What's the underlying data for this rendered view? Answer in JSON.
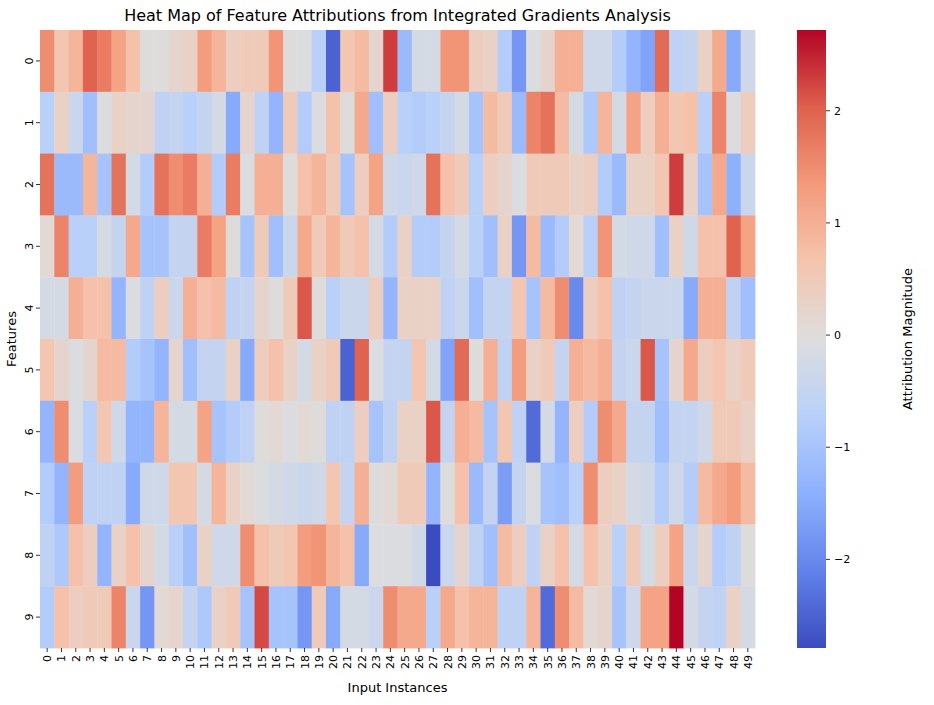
{
  "chart_data": {
    "type": "heatmap",
    "title": "Heat Map of Feature Attributions from Integrated Gradients Analysis",
    "xlabel": "Input Instances",
    "ylabel": "Features",
    "categories": [
      "0",
      "1",
      "2",
      "3",
      "4",
      "5",
      "6",
      "7",
      "8",
      "9",
      "10",
      "11",
      "12",
      "13",
      "14",
      "15",
      "16",
      "17",
      "18",
      "19",
      "20",
      "21",
      "22",
      "23",
      "24",
      "25",
      "26",
      "27",
      "28",
      "29",
      "30",
      "31",
      "32",
      "33",
      "34",
      "35",
      "36",
      "37",
      "38",
      "39",
      "40",
      "41",
      "42",
      "43",
      "44",
      "45",
      "46",
      "47",
      "48",
      "49"
    ],
    "y_categories": [
      "0",
      "1",
      "2",
      "3",
      "4",
      "5",
      "6",
      "7",
      "8",
      "9"
    ],
    "values": [
      [
        1.5,
        0.6,
        0.9,
        2.0,
        1.7,
        1.2,
        0.7,
        0,
        0,
        0.2,
        0.3,
        1.3,
        0.9,
        0.4,
        0.5,
        0.5,
        1.4,
        0,
        -0.1,
        -0.7,
        -2.5,
        0.6,
        0.8,
        0.2,
        2.3,
        -1.2,
        -0.2,
        -0.2,
        1.4,
        1.4,
        0.4,
        0.3,
        -0.8,
        -1.8,
        -0.1,
        0.2,
        1.0,
        1.0,
        -0.3,
        -0.3,
        -0.8,
        -1.3,
        -1.6,
        1.9,
        -0.6,
        -0.5,
        0.3,
        1.1,
        -1.5,
        -0.3
      ],
      [
        -0.7,
        0.3,
        -0.4,
        -1.1,
        -0.1,
        0.3,
        0.2,
        0.2,
        -0.6,
        -0.5,
        -0.7,
        -0.5,
        -0.2,
        -1.5,
        0.2,
        -0.6,
        -1.3,
        0.5,
        -0.8,
        -0.1,
        0.7,
        0,
        1.1,
        -1.1,
        0.4,
        -0.7,
        -0.8,
        -0.7,
        -0.5,
        -0.2,
        -1.0,
        0.8,
        0.5,
        -1.2,
        1.6,
        1.8,
        0.8,
        -0.2,
        -0.9,
        0.9,
        -0.2,
        1.2,
        0.4,
        1.0,
        0.6,
        0.7,
        -0.7,
        1.6,
        -0.1,
        0.4
      ],
      [
        1.8,
        -1.2,
        -1.2,
        0.9,
        -1.0,
        1.8,
        -0.2,
        -0.8,
        1.8,
        1.5,
        1.7,
        1.0,
        -0.8,
        1.7,
        -0.1,
        1.0,
        1.0,
        0,
        0.7,
        0.9,
        0.5,
        -1.0,
        0.4,
        1.2,
        -0.3,
        -0.4,
        -0.3,
        1.8,
        0.7,
        0.5,
        -0.7,
        0.4,
        0.2,
        -0.1,
        0.5,
        0.5,
        0.5,
        0.3,
        0.4,
        -0.8,
        -1.2,
        0.3,
        0.3,
        0.6,
        2.3,
        0.3,
        -1.0,
        1.1,
        -1.4,
        -0.4
      ],
      [
        0.1,
        1.6,
        -0.7,
        -0.7,
        -0.2,
        -0.5,
        1.1,
        -1.0,
        -1.0,
        -0.5,
        -0.5,
        1.7,
        1.2,
        0,
        -1.0,
        0.5,
        -1.1,
        -0.4,
        1.1,
        0.5,
        0.9,
        0.5,
        0.7,
        -0.2,
        -0.8,
        0.3,
        -0.8,
        -0.8,
        -0.5,
        -0.2,
        -0.7,
        -1.1,
        0.3,
        -1.8,
        0.8,
        -1.2,
        -0.8,
        0.1,
        -0.7,
        1.4,
        -0.2,
        -0.3,
        -0.3,
        -1.1,
        0.3,
        -0.3,
        0.7,
        0.7,
        2.0,
        1.2
      ],
      [
        -0.2,
        -0.2,
        1.0,
        0.7,
        0.7,
        -1.3,
        -0.1,
        -0.6,
        0.4,
        -0.4,
        1.0,
        0.7,
        0.8,
        -0.6,
        -0.5,
        0.2,
        0,
        0.5,
        2.1,
        0,
        -0.7,
        -0.4,
        -0.4,
        0.4,
        -1.3,
        0.3,
        0.3,
        0.3,
        -0.6,
        -0.4,
        -1.1,
        -0.5,
        -0.5,
        0.6,
        -1.0,
        0.8,
        1.5,
        -2.0,
        0.4,
        0.7,
        -0.6,
        -0.5,
        -0.4,
        -0.4,
        -0.4,
        -1.5,
        1.0,
        1.0,
        -0.6,
        -1.1
      ],
      [
        0.6,
        0.2,
        -0.1,
        0.2,
        0.8,
        0.8,
        -0.8,
        -1.0,
        -1.3,
        0.2,
        -1.1,
        -0.5,
        -0.5,
        0.3,
        -1.5,
        0.4,
        0.7,
        0.3,
        -0.2,
        0.3,
        0.5,
        -2.5,
        2.0,
        -0.1,
        -0.5,
        -0.5,
        0.6,
        -0.2,
        -1.6,
        1.9,
        0,
        1.0,
        -0.6,
        1.3,
        0.3,
        0.5,
        -0.5,
        1.0,
        0.8,
        1.0,
        -0.5,
        -0.4,
        2.1,
        -1.0,
        0.2,
        1.1,
        0.4,
        0.6,
        0.3,
        0.5
      ],
      [
        -1.3,
        1.5,
        -0.1,
        -0.7,
        0.6,
        -0.3,
        -1.3,
        -1.3,
        0.9,
        -0.2,
        -0.2,
        1.2,
        -1.0,
        -0.8,
        -0.6,
        0,
        0.1,
        -0.1,
        0.1,
        0,
        -0.6,
        -0.6,
        0.4,
        -1.0,
        -0.6,
        0.3,
        0.3,
        2.1,
        -0.5,
        1.0,
        0.8,
        -1.0,
        0.6,
        -0.6,
        -2.4,
        -0.2,
        -1.3,
        0.4,
        -0.8,
        1.5,
        1.1,
        -0.5,
        -0.5,
        -1.1,
        -0.5,
        -0.5,
        -0.3,
        0.5,
        0.5,
        0.3
      ],
      [
        -0.8,
        -1.3,
        1.3,
        -0.6,
        -0.6,
        -0.6,
        -1.5,
        -0.3,
        -0.3,
        0.6,
        0.6,
        -0.2,
        0.9,
        0.3,
        0.1,
        -0.1,
        -0.2,
        -0.3,
        -0.4,
        -0.3,
        0.6,
        -0.5,
        1.0,
        0,
        0.1,
        0.5,
        0.5,
        -1.3,
        0,
        0.7,
        -1.2,
        -0.5,
        -1.7,
        -0.5,
        -0.1,
        -1.0,
        -1.1,
        -0.7,
        1.5,
        0.4,
        0.3,
        -0.2,
        -0.3,
        -0.8,
        -0.3,
        -0.8,
        0.8,
        1.1,
        1.3,
        0.8
      ],
      [
        -0.6,
        -0.9,
        0.7,
        0.4,
        -1.3,
        0.3,
        0.7,
        0.2,
        -0.2,
        -0.7,
        -1.1,
        0.3,
        -0.3,
        -0.3,
        1.5,
        0.7,
        0.5,
        0.6,
        1.3,
        1.4,
        0.9,
        0.7,
        -1.5,
        -0.1,
        -0.1,
        -0.1,
        -0.3,
        -2.79,
        -0.4,
        0.2,
        -0.6,
        -1.1,
        0.8,
        0.4,
        -0.6,
        0.3,
        0.7,
        -0.2,
        0.7,
        0.3,
        -0.7,
        0.5,
        -0.2,
        0.4,
        1.2,
        -0.4,
        0.2,
        -0.8,
        -0.6,
        0
      ],
      [
        -0.8,
        0.7,
        0.4,
        0.5,
        0.5,
        1.6,
        -0.4,
        -1.8,
        0.1,
        0.2,
        -0.5,
        -0.9,
        0.3,
        0.5,
        -1.0,
        2.2,
        -1.0,
        -1.0,
        -1.8,
        0.5,
        -1.5,
        -0.2,
        -0.2,
        -0.4,
        1.5,
        1.1,
        1.1,
        -0.7,
        1.1,
        0.7,
        0.9,
        0.9,
        -0.6,
        -0.6,
        0.9,
        -2.4,
        1.5,
        0.8,
        0.1,
        0.2,
        -1.0,
        -0.3,
        1.2,
        1.2,
        2.72,
        -0.2,
        -0.5,
        -0.6,
        0.3,
        -0.2
      ]
    ],
    "colorbar": {
      "label": "Attribution Magnitude",
      "range": [
        -2.79,
        2.72
      ],
      "ticks": [
        {
          "value": -2,
          "label": "−2"
        },
        {
          "value": -1,
          "label": "−1"
        },
        0,
        1,
        2
      ]
    }
  }
}
